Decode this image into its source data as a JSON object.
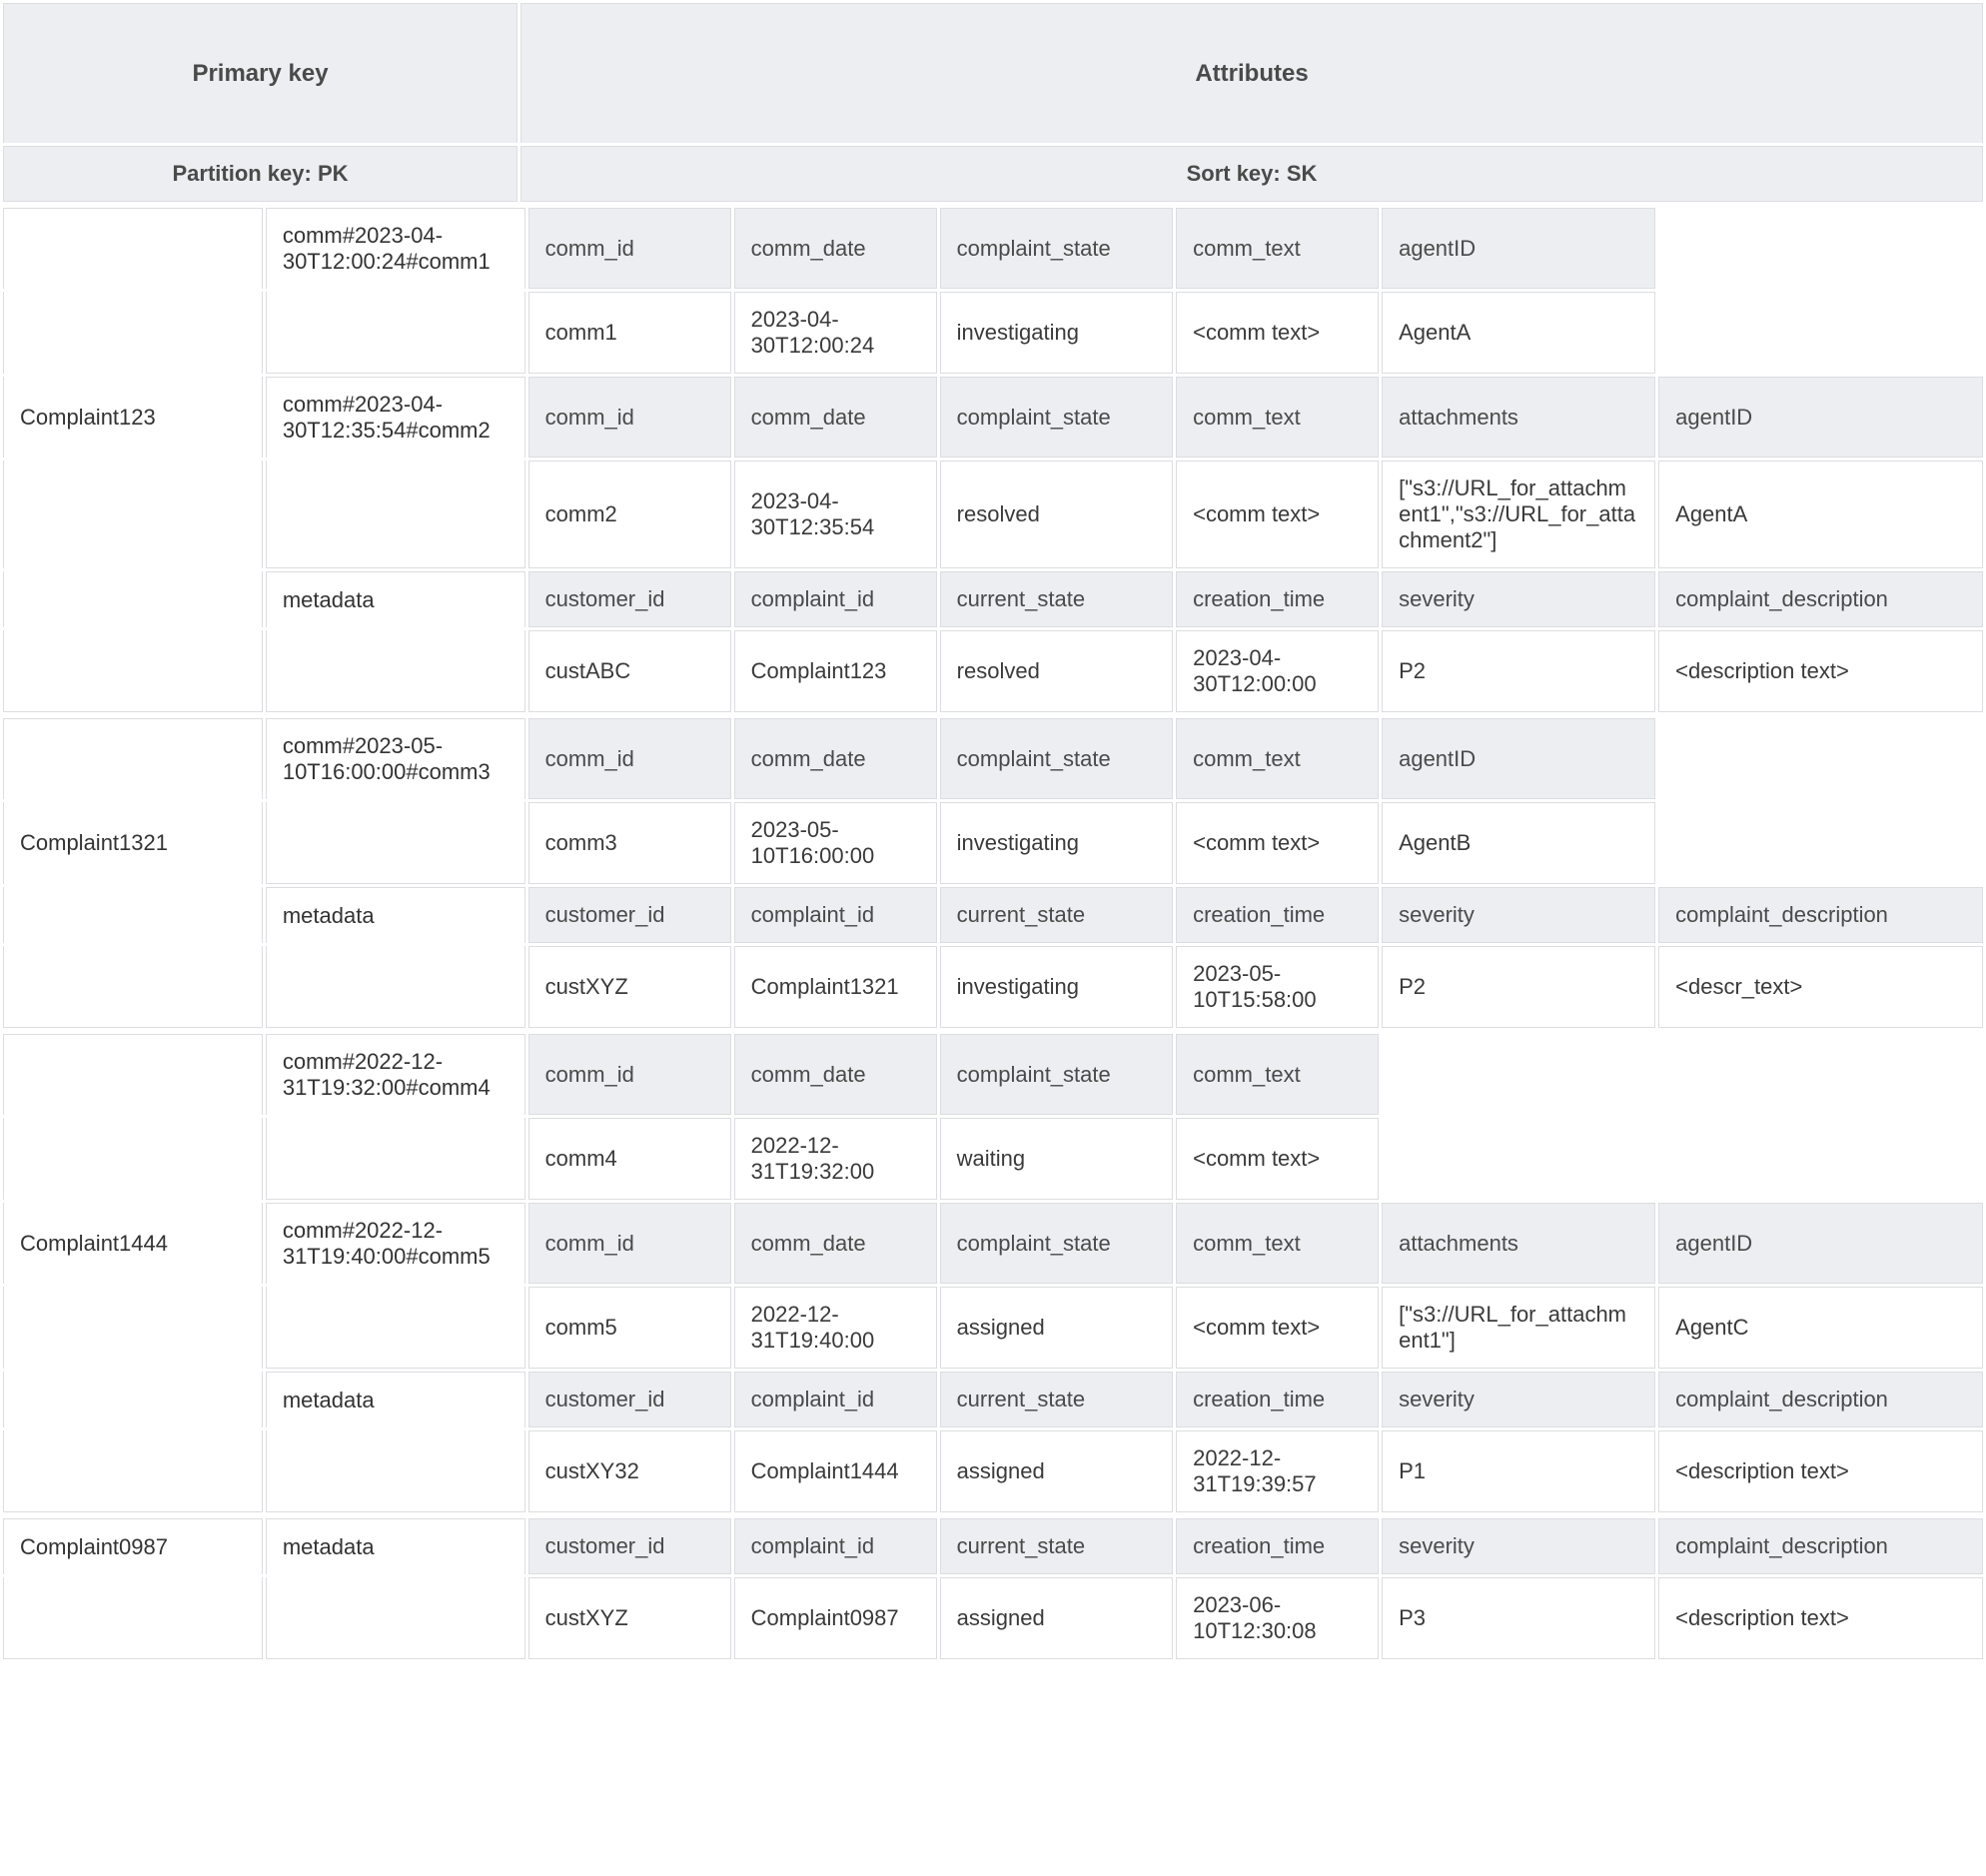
{
  "headers": {
    "primary_key": "Primary key",
    "attributes": "Attributes",
    "partition_key": "Partition key: PK",
    "sort_key": "Sort key: SK"
  },
  "attr_labels": {
    "comm_id": "comm_id",
    "comm_date": "comm_date",
    "complaint_state": "complaint_state",
    "comm_text": "comm_text",
    "agentID": "agentID",
    "attachments": "attachments",
    "customer_id": "customer_id",
    "complaint_id": "complaint_id",
    "current_state": "current_state",
    "creation_time": "creation_time",
    "severity": "severity",
    "complaint_description": "complaint_description"
  },
  "partitions": [
    {
      "pk": "Complaint123",
      "items": [
        {
          "sk": "comm#2023-04-30T12:00:24#comm1",
          "cols": [
            "comm_id",
            "comm_date",
            "complaint_state",
            "comm_text",
            "agentID"
          ],
          "vals": [
            "comm1",
            "2023-04-30T12:00:24",
            "investigating",
            "<comm text>",
            "AgentA"
          ]
        },
        {
          "sk": "comm#2023-04-30T12:35:54#comm2",
          "cols": [
            "comm_id",
            "comm_date",
            "complaint_state",
            "comm_text",
            "attachments",
            "agentID"
          ],
          "vals": [
            "comm2",
            "2023-04-30T12:35:54",
            "resolved",
            "<comm text>",
            "[\"s3://URL_for_attachment1\",\"s3://URL_for_attachment2\"]",
            "AgentA"
          ]
        },
        {
          "sk": "metadata",
          "cols": [
            "customer_id",
            "complaint_id",
            "current_state",
            "creation_time",
            "severity",
            "complaint_description"
          ],
          "vals": [
            "custABC",
            "Complaint123",
            "resolved",
            "2023-04-30T12:00:00",
            "P2",
            "<description text>"
          ]
        }
      ]
    },
    {
      "pk": "Complaint1321",
      "items": [
        {
          "sk": "comm#2023-05-10T16:00:00#comm3",
          "cols": [
            "comm_id",
            "comm_date",
            "complaint_state",
            "comm_text",
            "agentID"
          ],
          "vals": [
            "comm3",
            "2023-05-10T16:00:00",
            "investigating",
            "<comm text>",
            "AgentB"
          ]
        },
        {
          "sk": "metadata",
          "cols": [
            "customer_id",
            "complaint_id",
            "current_state",
            "creation_time",
            "severity",
            "complaint_description"
          ],
          "vals": [
            "custXYZ",
            "Complaint1321",
            "investigating",
            "2023-05-10T15:58:00",
            "P2",
            "<descr_text>"
          ]
        }
      ]
    },
    {
      "pk": "Complaint1444",
      "items": [
        {
          "sk": "comm#2022-12-31T19:32:00#comm4",
          "cols": [
            "comm_id",
            "comm_date",
            "complaint_state",
            "comm_text"
          ],
          "vals": [
            "comm4",
            "2022-12-31T19:32:00",
            "waiting",
            "<comm text>"
          ]
        },
        {
          "sk": "comm#2022-12-31T19:40:00#comm5",
          "cols": [
            "comm_id",
            "comm_date",
            "complaint_state",
            "comm_text",
            "attachments",
            "agentID"
          ],
          "vals": [
            "comm5",
            "2022-12-31T19:40:00",
            "assigned",
            "<comm text>",
            "[\"s3://URL_for_attachment1\"]",
            "AgentC"
          ]
        },
        {
          "sk": "metadata",
          "cols": [
            "customer_id",
            "complaint_id",
            "current_state",
            "creation_time",
            "severity",
            "complaint_description"
          ],
          "vals": [
            "custXY32",
            "Complaint1444",
            "assigned",
            "2022-12-31T19:39:57",
            "P1",
            "<description text>"
          ]
        }
      ]
    },
    {
      "pk": "Complaint0987",
      "items": [
        {
          "sk": "metadata",
          "cols": [
            "customer_id",
            "complaint_id",
            "current_state",
            "creation_time",
            "severity",
            "complaint_description"
          ],
          "vals": [
            "custXYZ",
            "Complaint0987",
            "assigned",
            "2023-06-10T12:30:08",
            "P3",
            "<description text>"
          ]
        }
      ]
    }
  ],
  "layout": {
    "max_attr_cols": 6,
    "col_widths": [
      "c-sm",
      "c-sm",
      "c-md",
      "c-sm",
      "c-lg",
      "c-xl"
    ]
  },
  "colors": {
    "header_bg": "#eceef1",
    "border": "#dcdde0",
    "cell_bg": "#ffffff",
    "text": "#333333"
  }
}
